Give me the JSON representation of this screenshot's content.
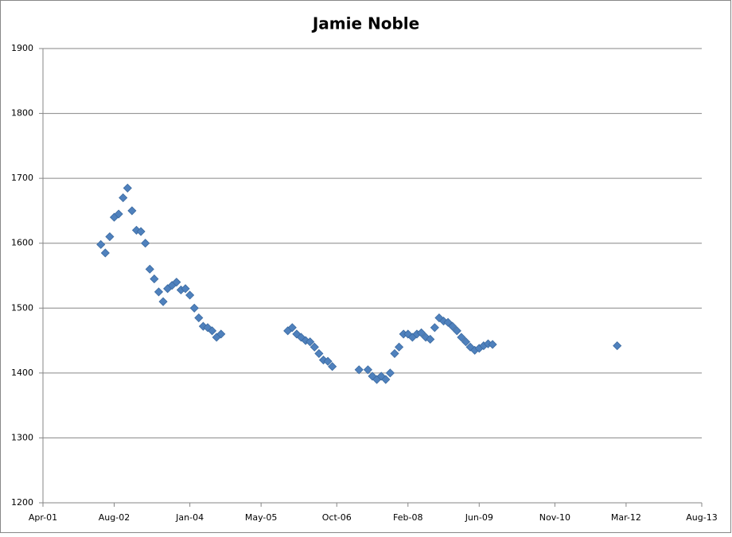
{
  "chart_data": {
    "type": "scatter",
    "title": "Jamie Noble",
    "series": [
      {
        "name": "Jamie Noble",
        "color": "#4f81bd",
        "x": [
          "2002-05",
          "2002-06",
          "2002-07",
          "2002-08",
          "2002-09",
          "2002-10",
          "2002-11",
          "2002-12",
          "2003-01",
          "2003-02",
          "2003-03",
          "2003-04",
          "2003-05",
          "2003-06",
          "2003-07",
          "2003-08",
          "2003-09",
          "2003-10",
          "2003-11",
          "2003-12",
          "2004-01",
          "2004-02",
          "2004-03",
          "2004-04",
          "2004-05",
          "2004-06",
          "2004-07",
          "2004-08",
          "2005-11",
          "2005-12",
          "2006-01",
          "2006-02",
          "2006-03",
          "2006-04",
          "2006-05",
          "2006-06",
          "2006-07",
          "2006-08",
          "2006-09",
          "2007-03",
          "2007-05",
          "2007-06",
          "2007-07",
          "2007-08",
          "2007-09",
          "2007-10",
          "2007-11",
          "2007-12",
          "2008-01",
          "2008-02",
          "2008-03",
          "2008-04",
          "2008-05",
          "2008-06",
          "2008-07",
          "2008-08",
          "2008-09",
          "2008-10",
          "2008-11",
          "2008-12",
          "2009-01",
          "2009-02",
          "2009-03",
          "2009-04",
          "2009-05",
          "2009-06",
          "2009-07",
          "2009-08",
          "2009-09",
          "2012-01"
        ],
        "values": [
          1598,
          1585,
          1610,
          1640,
          1645,
          1670,
          1685,
          1650,
          1620,
          1618,
          1600,
          1560,
          1545,
          1525,
          1510,
          1530,
          1535,
          1540,
          1528,
          1530,
          1520,
          1500,
          1485,
          1472,
          1470,
          1465,
          1455,
          1460,
          1465,
          1470,
          1460,
          1455,
          1450,
          1448,
          1440,
          1430,
          1420,
          1418,
          1410,
          1405,
          1405,
          1395,
          1390,
          1395,
          1390,
          1400,
          1430,
          1440,
          1460,
          1460,
          1455,
          1460,
          1462,
          1455,
          1452,
          1470,
          1485,
          1480,
          1478,
          1472,
          1465,
          1455,
          1448,
          1440,
          1435,
          1438,
          1442,
          1445,
          1444,
          1442
        ]
      }
    ],
    "xlim": [
      "2001-04",
      "2013-08"
    ],
    "xticks": [
      {
        "value": "2001-04",
        "label": "Apr-01"
      },
      {
        "value": "2002-08",
        "label": "Aug-02"
      },
      {
        "value": "2004-01",
        "label": "Jan-04"
      },
      {
        "value": "2005-05",
        "label": "May-05"
      },
      {
        "value": "2006-10",
        "label": "Oct-06"
      },
      {
        "value": "2008-02",
        "label": "Feb-08"
      },
      {
        "value": "2009-06",
        "label": "Jun-09"
      },
      {
        "value": "2010-11",
        "label": "Nov-10"
      },
      {
        "value": "2012-03",
        "label": "Mar-12"
      },
      {
        "value": "2013-08",
        "label": "Aug-13"
      }
    ],
    "ylim": [
      1200,
      1900
    ],
    "yticks": [
      1200,
      1300,
      1400,
      1500,
      1600,
      1700,
      1800,
      1900
    ],
    "grid": true
  }
}
